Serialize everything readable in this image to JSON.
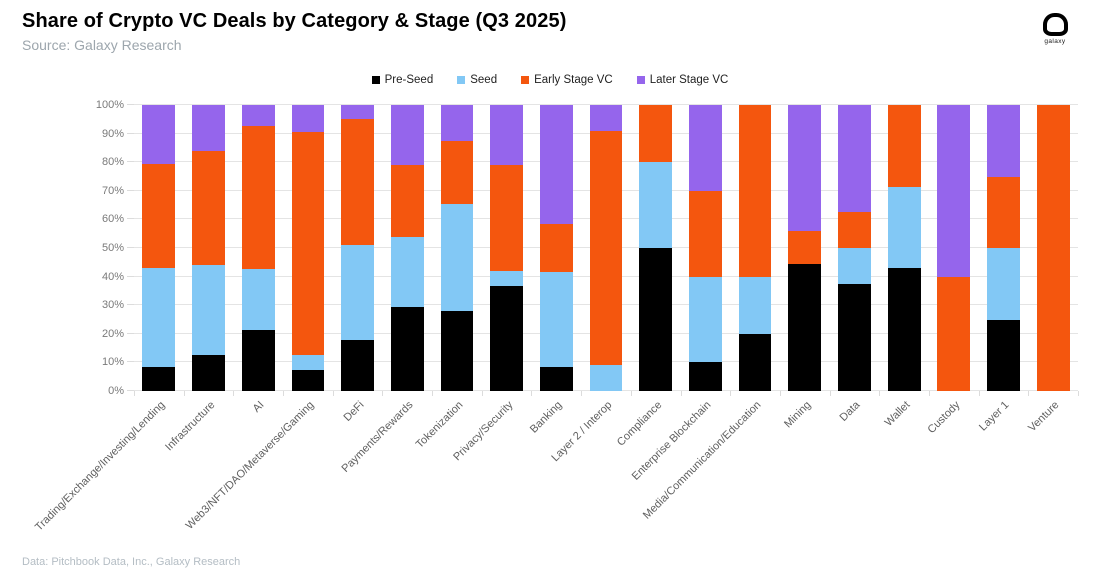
{
  "header": {
    "title": "Share of Crypto VC Deals by Category & Stage (Q3 2025)",
    "source": "Source: Galaxy Research",
    "logo_text": "galaxy"
  },
  "footer": {
    "text": "Data: Pitchbook Data, Inc., Galaxy Research"
  },
  "colors": {
    "pre_seed": "#000000",
    "seed": "#82C8F5",
    "early_stage_vc": "#F4560E",
    "later_stage_vc": "#9565EC",
    "grid": "#E4E4E4",
    "axis_text": "#7A7A7A",
    "category_text": "#5F5F5F",
    "subtitle_text": "#9DA6AD",
    "footer_text": "#B4BDC4"
  },
  "chart_data": {
    "type": "bar",
    "variant": "stacked-100-percent",
    "title": "Share of Crypto VC Deals by Category & Stage (Q3 2025)",
    "xlabel": "",
    "ylabel": "",
    "grid": true,
    "legend_position": "top-center",
    "y_axis": {
      "min": 0,
      "max": 100,
      "tick_step": 10,
      "ticks": [
        "0%",
        "10%",
        "20%",
        "30%",
        "40%",
        "50%",
        "60%",
        "70%",
        "80%",
        "90%",
        "100%"
      ]
    },
    "categories": [
      "Trading/Exchange/Investing/Lending",
      "Infrastructure",
      "AI",
      "Web3/NFT/DAO/Metaverse/Gaming",
      "DeFi",
      "Payments/Rewards",
      "Tokenization",
      "Privacy/Security",
      "Banking",
      "Layer 2 / Interop",
      "Compliance",
      "Enterprise Blockchain",
      "Media/Communication/Education",
      "Mining",
      "Data",
      "Wallet",
      "Custody",
      "Layer 1",
      "Venture"
    ],
    "series": [
      {
        "name": "Pre-Seed",
        "color": "#000000",
        "values": [
          8.5,
          12.5,
          21.4,
          7.5,
          18,
          29.5,
          28,
          36.8,
          8.3,
          0,
          50,
          10,
          20,
          44.5,
          37.5,
          42.9,
          0,
          25,
          0
        ]
      },
      {
        "name": "Seed",
        "color": "#82C8F5",
        "values": [
          34.5,
          31.5,
          21.4,
          5,
          33,
          24.5,
          37.5,
          5.3,
          33.3,
          9,
          30,
          30,
          20,
          0,
          12.5,
          28.6,
          0,
          25,
          0
        ]
      },
      {
        "name": "Early Stage VC",
        "color": "#F4560E",
        "values": [
          36.5,
          40,
          50,
          78,
          44,
          25,
          22,
          36.8,
          16.7,
          82,
          20,
          30,
          60,
          11.5,
          12.5,
          28.5,
          40,
          25,
          100
        ]
      },
      {
        "name": "Later Stage VC",
        "color": "#9565EC",
        "values": [
          20.5,
          16,
          7.2,
          9.5,
          5,
          21,
          12.5,
          21.1,
          41.7,
          9,
          0,
          30,
          0,
          44,
          37.5,
          0,
          60,
          25,
          0
        ]
      }
    ]
  }
}
